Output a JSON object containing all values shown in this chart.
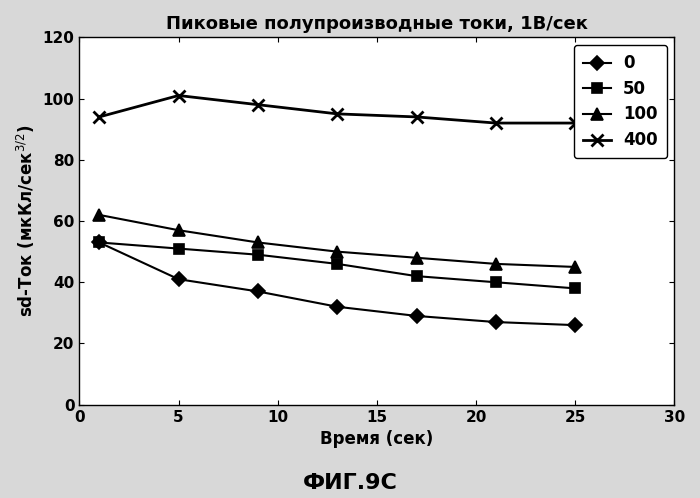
{
  "title": "Пиковые полупроизводные токи, 1В/сек",
  "xlabel": "Время (сек)",
  "ylabel": "sd-Ток (мкКл/сек$^{3/2}$)",
  "xlim": [
    0,
    30
  ],
  "ylim": [
    0,
    120
  ],
  "xticks": [
    0,
    5,
    10,
    15,
    20,
    25,
    30
  ],
  "yticks": [
    0,
    20,
    40,
    60,
    80,
    100,
    120
  ],
  "caption": "ФИГ.9С",
  "series": [
    {
      "label": "0",
      "x": [
        1,
        5,
        9,
        13,
        17,
        21,
        25
      ],
      "y": [
        53,
        41,
        37,
        32,
        29,
        27,
        26
      ],
      "marker": "D",
      "color": "#000000",
      "markersize": 7,
      "linewidth": 1.5
    },
    {
      "label": "50",
      "x": [
        1,
        5,
        9,
        13,
        17,
        21,
        25
      ],
      "y": [
        53,
        51,
        49,
        46,
        42,
        40,
        38
      ],
      "marker": "s",
      "color": "#000000",
      "markersize": 7,
      "linewidth": 1.5
    },
    {
      "label": "100",
      "x": [
        1,
        5,
        9,
        13,
        17,
        21,
        25
      ],
      "y": [
        62,
        57,
        53,
        50,
        48,
        46,
        45
      ],
      "marker": "^",
      "color": "#000000",
      "markersize": 8,
      "linewidth": 1.5
    },
    {
      "label": "400",
      "x": [
        1,
        5,
        9,
        13,
        17,
        21,
        25
      ],
      "y": [
        94,
        101,
        98,
        95,
        94,
        92,
        92
      ],
      "marker": "x",
      "color": "#000000",
      "markersize": 9,
      "linewidth": 2.0
    }
  ],
  "legend_loc": "upper right",
  "fig_facecolor": "#d8d8d8",
  "ax_facecolor": "#ffffff",
  "grid": false,
  "title_fontsize": 13,
  "label_fontsize": 12,
  "tick_fontsize": 11,
  "caption_fontsize": 16
}
